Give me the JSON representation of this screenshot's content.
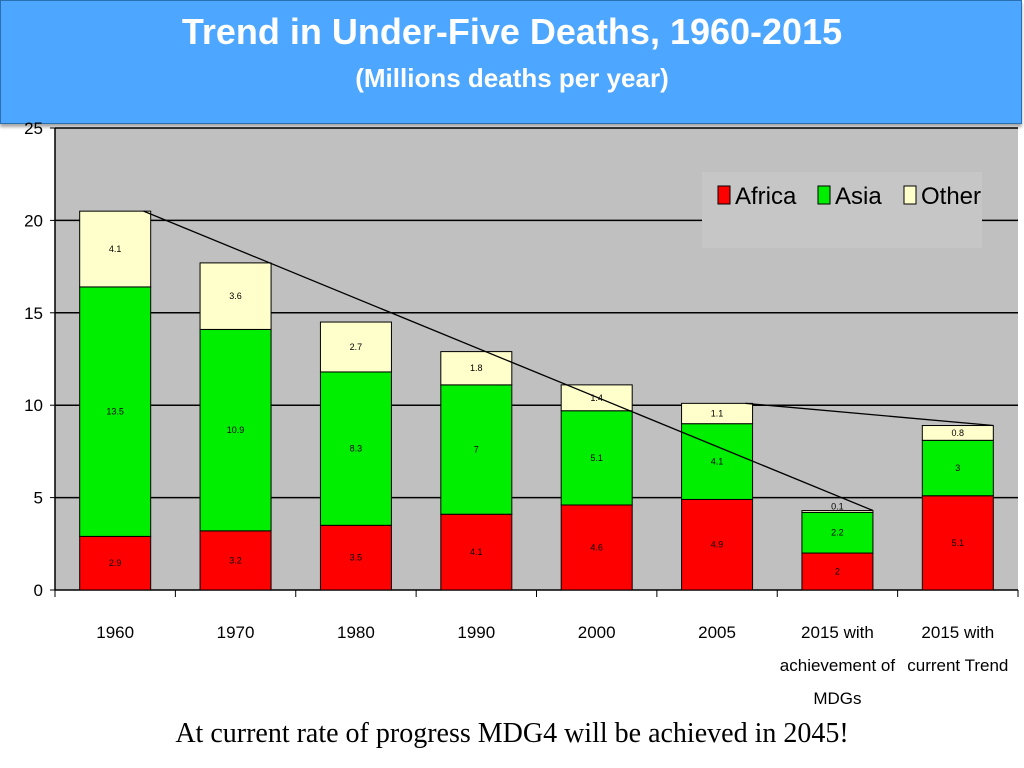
{
  "header": {
    "title": "Trend in Under-Five Deaths, 1960-2015",
    "subtitle": "(Millions deaths per year)"
  },
  "footer": {
    "note": "At current rate of progress MDG4 will be achieved in 2045!"
  },
  "colors": {
    "Africa": "#ff0000",
    "Asia": "#00ee00",
    "Other": "#ffffcc",
    "header_bg": "#4da6ff",
    "plot_bg": "#c0c0c0"
  },
  "chart_data": {
    "type": "bar",
    "stacked": true,
    "categories": [
      "1960",
      "1970",
      "1980",
      "1990",
      "2000",
      "2005",
      "2015 with achievement of MDGs",
      "2015 with current Trend"
    ],
    "category_lines": [
      [
        "1960"
      ],
      [
        "1970"
      ],
      [
        "1980"
      ],
      [
        "1990"
      ],
      [
        "2000"
      ],
      [
        "2005"
      ],
      [
        "2015 with",
        "achievement of",
        "MDGs"
      ],
      [
        "2015 with",
        "current Trend"
      ]
    ],
    "series": [
      {
        "name": "Africa",
        "values": [
          2.9,
          3.2,
          3.5,
          4.1,
          4.6,
          4.9,
          2,
          5.1
        ],
        "labels": [
          "2.9",
          "3.2",
          "3.5",
          "4.1",
          "4.6",
          "4.9",
          "2",
          "5.1"
        ]
      },
      {
        "name": "Asia",
        "values": [
          13.5,
          10.9,
          8.3,
          7,
          5.1,
          4.1,
          2.2,
          3
        ],
        "labels": [
          "13.5",
          "10.9",
          "8.3",
          "7",
          "5.1",
          "4.1",
          "2.2",
          "3"
        ]
      },
      {
        "name": "Other",
        "values": [
          4.1,
          3.6,
          2.7,
          1.8,
          1.4,
          1.1,
          0.1,
          0.8
        ],
        "labels": [
          "4.1",
          "3.6",
          "2.7",
          "1.8",
          "1.4",
          "1.1",
          "0.1",
          "0.8"
        ]
      }
    ],
    "ylim": [
      0,
      25
    ],
    "yticks": [
      "0",
      "5",
      "10",
      "15",
      "20",
      "25"
    ],
    "grid": true,
    "legend": "top-right",
    "trend_lines": [
      {
        "from": "1960",
        "to": "2015 with achievement of MDGs"
      },
      {
        "from": "2005",
        "to": "2015 with current Trend"
      }
    ]
  }
}
